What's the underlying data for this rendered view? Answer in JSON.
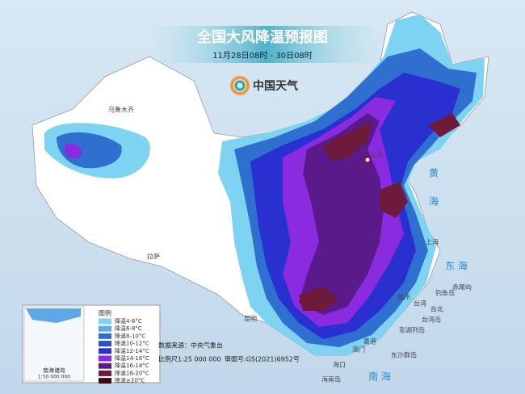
{
  "header": {
    "title": "全国大风降温预报图",
    "subtitle": "11月28日08时 - 30日08时"
  },
  "logo": {
    "text": "中国天气"
  },
  "places": [
    "乌鲁木齐",
    "拉萨",
    "昆明",
    "北京",
    "上海",
    "福州",
    "台北",
    "台湾",
    "台湾岛",
    "钓鱼岛",
    "赤尾屿",
    "澎湖列岛",
    "香港",
    "澳门",
    "海口",
    "海南岛",
    "东沙群岛"
  ],
  "seas": [
    "黄",
    "海",
    "东 海",
    "南 海"
  ],
  "legend": {
    "title": "图例",
    "items": [
      {
        "label": "降温4-6°C",
        "color": "#7fd3f2"
      },
      {
        "label": "降温6-8°C",
        "color": "#5fa8e8"
      },
      {
        "label": "降温8-10°C",
        "color": "#2f6fd0"
      },
      {
        "label": "降温10-12°C",
        "color": "#2a4fc8"
      },
      {
        "label": "降温12-14°C",
        "color": "#2a2fd0"
      },
      {
        "label": "降温14-16°C",
        "color": "#8a2be0"
      },
      {
        "label": "降温16-18°C",
        "color": "#5a1a8a"
      },
      {
        "label": "降温18-20°C",
        "color": "#6e1a3a"
      },
      {
        "label": "降温≥20°C",
        "color": "#3a0a10"
      }
    ]
  },
  "inset": {
    "label": "南海诸岛",
    "scale": "1:50 000 000"
  },
  "footer": {
    "source": "数据来源：中央气象台",
    "scale": "比例尺1:25 000 000",
    "review": "审图号:GS(2021)6952号"
  }
}
